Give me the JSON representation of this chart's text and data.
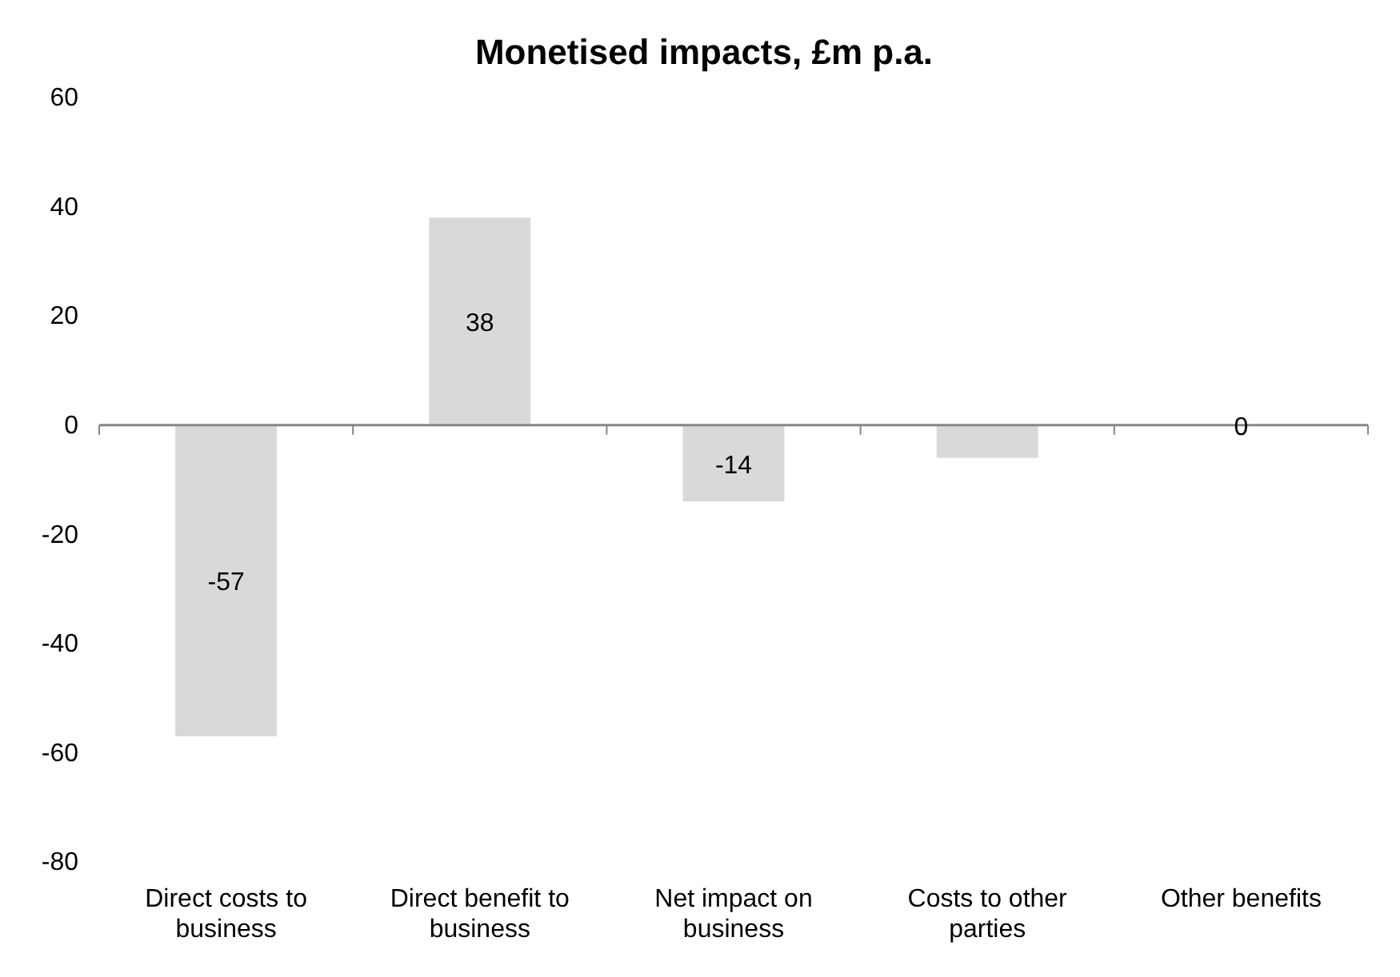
{
  "chart_data": {
    "type": "bar",
    "title": "Monetised impacts, £m p.a.",
    "categories": [
      "Direct costs to business",
      "Direct benefit to business",
      "Net impact on business",
      "Costs to other parties",
      "Other benefits"
    ],
    "values": [
      -57,
      38,
      -14,
      -6,
      0
    ],
    "value_labels": [
      "-57",
      "38",
      "-14",
      null,
      "0"
    ],
    "color": "#d9d9d9",
    "ylim": [
      -80,
      60
    ],
    "yticks": [
      -80,
      -60,
      -40,
      -20,
      0,
      20,
      40,
      60
    ]
  }
}
